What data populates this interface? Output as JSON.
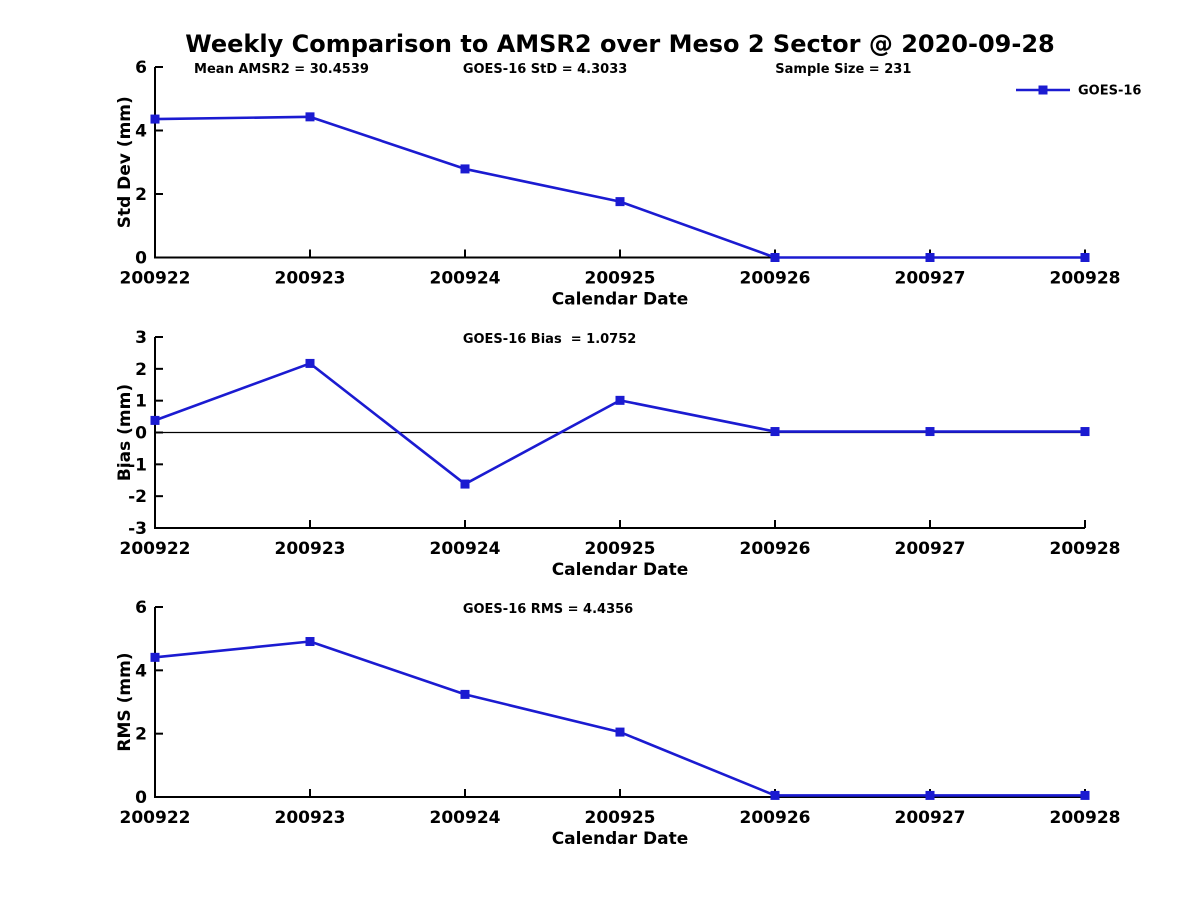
{
  "page": {
    "title": "Weekly Comparison to AMSR2 over Meso 2 Sector @ 2020-09-28"
  },
  "colors": {
    "series": "#1b1bd1",
    "axis": "#000000",
    "zero_line": "#000000"
  },
  "legend": {
    "label": "GOES-16",
    "position": "top-right",
    "marker": "filled-square"
  },
  "chart_data": [
    {
      "type": "line",
      "categories": [
        "200922",
        "200923",
        "200924",
        "200925",
        "200926",
        "200927",
        "200928"
      ],
      "series": [
        {
          "name": "GOES-16",
          "values": [
            4.36,
            4.43,
            2.79,
            1.76,
            0.0,
            0.0,
            0.0
          ]
        }
      ],
      "xlabel": "Calendar Date",
      "ylabel": "Std Dev (mm)",
      "ylim": [
        0,
        6
      ],
      "yticks": [
        0,
        2,
        4,
        6
      ],
      "grid": false,
      "zero_line": false,
      "annotations": [
        "Mean AMSR2 = 30.4539",
        "GOES-16 StD = 4.3033",
        "Sample Size = 231"
      ],
      "legend": "GOES-16"
    },
    {
      "type": "line",
      "categories": [
        "200922",
        "200923",
        "200924",
        "200925",
        "200926",
        "200927",
        "200928"
      ],
      "series": [
        {
          "name": "GOES-16",
          "values": [
            0.38,
            2.17,
            -1.62,
            1.01,
            0.03,
            0.03,
            0.03
          ]
        }
      ],
      "xlabel": "Calendar Date",
      "ylabel": "Bias (mm)",
      "ylim": [
        -3,
        3
      ],
      "yticks": [
        -3,
        -2,
        -1,
        0,
        1,
        2,
        3
      ],
      "grid": false,
      "zero_line": true,
      "annotations": [
        "GOES-16 Bias  = 1.0752"
      ],
      "legend": null
    },
    {
      "type": "line",
      "categories": [
        "200922",
        "200923",
        "200924",
        "200925",
        "200926",
        "200927",
        "200928"
      ],
      "series": [
        {
          "name": "GOES-16",
          "values": [
            4.41,
            4.91,
            3.24,
            2.05,
            0.05,
            0.05,
            0.05
          ]
        }
      ],
      "xlabel": "Calendar Date",
      "ylabel": "RMS (mm)",
      "ylim": [
        0,
        6
      ],
      "yticks": [
        0,
        2,
        4,
        6
      ],
      "grid": false,
      "zero_line": false,
      "annotations": [
        "GOES-16 RMS = 4.4356"
      ],
      "legend": null
    }
  ]
}
